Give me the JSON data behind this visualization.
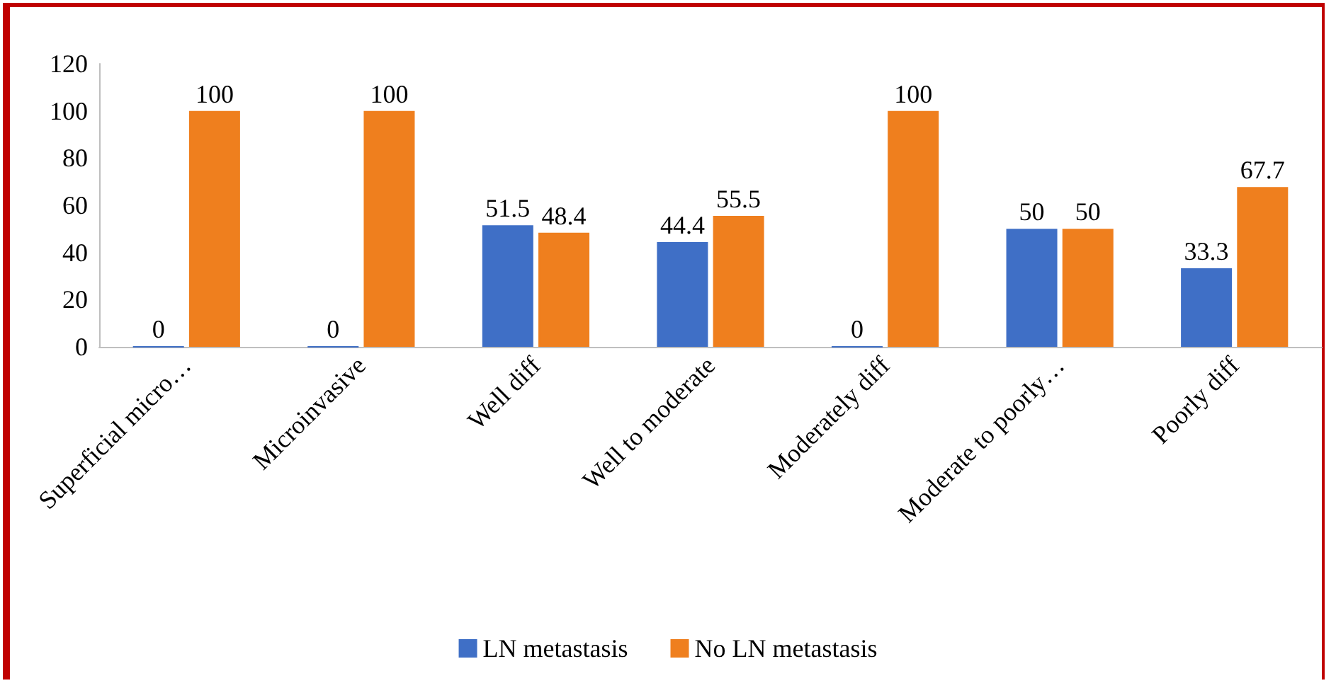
{
  "chart_data": {
    "type": "bar",
    "categories": [
      "Superficial micro…",
      "Microinvasive",
      "Well diff",
      "Well to moderate",
      "Moderately diff",
      "Moderate to poorly…",
      "Poorly diff"
    ],
    "series": [
      {
        "name": "LN metastasis",
        "color": "#3f6fc6",
        "values": [
          0,
          0,
          51.5,
          44.4,
          0,
          50,
          33.3
        ]
      },
      {
        "name": "No LN metastasis",
        "color": "#ef7f1e",
        "values": [
          100,
          100,
          48.4,
          55.5,
          100,
          50,
          67.7
        ]
      }
    ],
    "ylim": [
      0,
      120
    ],
    "yticks": [
      0,
      20,
      40,
      60,
      80,
      100,
      120
    ],
    "grid": false,
    "legend": "bottom",
    "data_labels": true
  }
}
